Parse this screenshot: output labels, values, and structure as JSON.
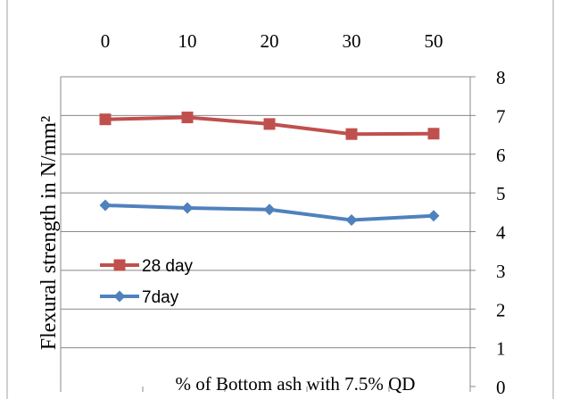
{
  "chart_data": {
    "type": "line",
    "title": "",
    "categories": [
      "0",
      "10",
      "20",
      "30",
      "50"
    ],
    "xlabel": "% of Bottom ash with 7.5% QD",
    "ylabel": "Flexural strength in N/mm²",
    "ylim": [
      0,
      8
    ],
    "yticks": [
      "0",
      "1",
      "2",
      "3",
      "4",
      "5",
      "6",
      "7",
      "8"
    ],
    "y_axis_position": "right",
    "x_axis_labels_position": "top",
    "grid": true,
    "legend_position": "left-middle",
    "series": [
      {
        "name": "28 day",
        "values": [
          6.9,
          6.95,
          6.78,
          6.52,
          6.53
        ],
        "color": "#C0504D",
        "marker": "square"
      },
      {
        "name": "7day",
        "values": [
          4.68,
          4.61,
          4.57,
          4.3,
          4.41
        ],
        "color": "#4F81BD",
        "marker": "diamond"
      }
    ]
  }
}
